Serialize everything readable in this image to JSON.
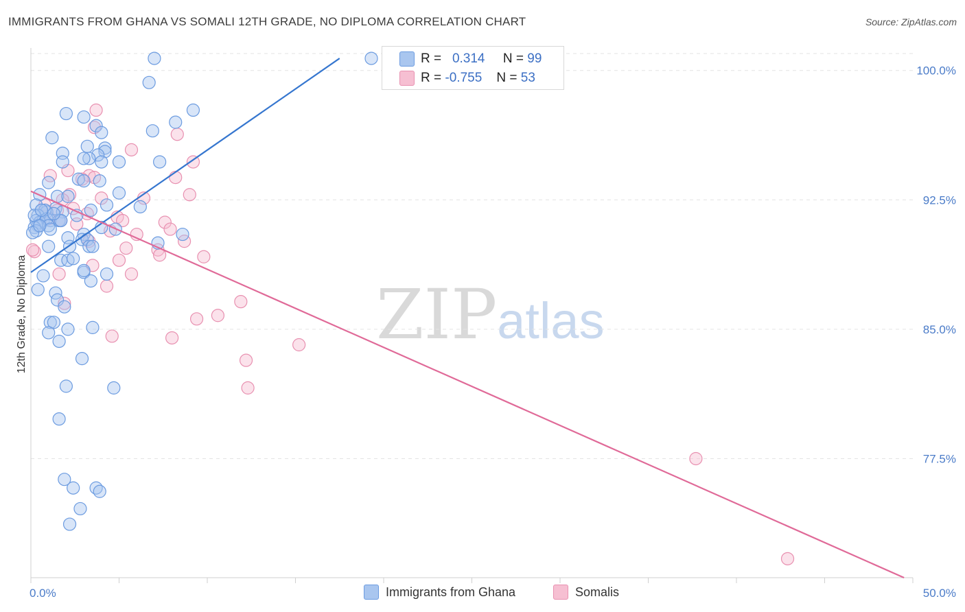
{
  "title": "IMMIGRANTS FROM GHANA VS SOMALI 12TH GRADE, NO DIPLOMA CORRELATION CHART",
  "source": "Source: ZipAtlas.com",
  "watermark": {
    "zip": "ZIP",
    "atlas": "atlas"
  },
  "legend_top": {
    "rows": [
      {
        "r_label": "R =",
        "r_value": "0.314",
        "n_label": "N =",
        "n_value": "99"
      },
      {
        "r_label": "R =",
        "r_value": "-0.755",
        "n_label": "N =",
        "n_value": "53"
      }
    ]
  },
  "legend_bottom": [
    "Immigrants from Ghana",
    "Somalis"
  ],
  "colors": {
    "ghana_fill": "#a9c6ef",
    "ghana_stroke": "#6b9be0",
    "ghana_line": "#3576cf",
    "somali_fill": "#f6bfd2",
    "somali_stroke": "#e890b0",
    "somali_line": "#e06a98",
    "grid": "#e3e3e3",
    "tick_text": "#4a7bc8"
  },
  "chart_data": {
    "type": "scatter",
    "title": "IMMIGRANTS FROM GHANA VS SOMALI 12TH GRADE, NO DIPLOMA CORRELATION CHART",
    "xlabel": "",
    "ylabel": "12th Grade, No Diploma",
    "xlim": [
      0,
      50
    ],
    "ylim": [
      70.6,
      101.3
    ],
    "x_tick_labels": [
      "0.0%",
      "50.0%"
    ],
    "y_ticks": [
      100.0,
      92.5,
      85.0,
      77.5
    ],
    "y_tick_labels": [
      "100.0%",
      "92.5%",
      "85.0%",
      "77.5%"
    ],
    "grid": true,
    "series": [
      {
        "name": "Immigrants from Ghana",
        "r": 0.314,
        "n": 99,
        "trend": {
          "x": [
            0,
            17.5
          ],
          "y": [
            88.3,
            100.7
          ]
        },
        "points": [
          [
            7.0,
            100.7
          ],
          [
            19.3,
            100.7
          ],
          [
            6.7,
            99.3
          ],
          [
            9.2,
            97.7
          ],
          [
            2.0,
            97.5
          ],
          [
            3.0,
            97.3
          ],
          [
            8.2,
            97.0
          ],
          [
            3.7,
            96.8
          ],
          [
            4.0,
            96.4
          ],
          [
            6.9,
            96.5
          ],
          [
            1.2,
            96.1
          ],
          [
            3.2,
            95.6
          ],
          [
            4.2,
            95.5
          ],
          [
            4.2,
            95.3
          ],
          [
            1.8,
            95.2
          ],
          [
            3.8,
            95.1
          ],
          [
            3.3,
            94.9
          ],
          [
            1.8,
            94.7
          ],
          [
            3.0,
            94.9
          ],
          [
            4.0,
            94.7
          ],
          [
            5.0,
            94.7
          ],
          [
            7.3,
            94.7
          ],
          [
            2.7,
            93.7
          ],
          [
            3.0,
            93.6
          ],
          [
            1.0,
            93.5
          ],
          [
            3.9,
            93.6
          ],
          [
            5.0,
            92.9
          ],
          [
            0.5,
            92.8
          ],
          [
            1.5,
            92.7
          ],
          [
            2.1,
            92.7
          ],
          [
            0.3,
            92.2
          ],
          [
            4.3,
            92.2
          ],
          [
            6.2,
            92.1
          ],
          [
            0.6,
            91.9
          ],
          [
            1.4,
            92.0
          ],
          [
            0.9,
            91.8
          ],
          [
            0.8,
            91.9
          ],
          [
            1.8,
            91.8
          ],
          [
            2.6,
            91.6
          ],
          [
            3.4,
            91.9
          ],
          [
            0.4,
            91.6
          ],
          [
            0.3,
            91.3
          ],
          [
            0.7,
            91.3
          ],
          [
            1.1,
            91.3
          ],
          [
            1.6,
            91.3
          ],
          [
            0.5,
            91.2
          ],
          [
            1.7,
            91.3
          ],
          [
            0.9,
            91.4
          ],
          [
            1.7,
            91.3
          ],
          [
            0.4,
            91.0
          ],
          [
            1.0,
            91.0
          ],
          [
            0.2,
            90.9
          ],
          [
            1.1,
            90.8
          ],
          [
            0.3,
            90.7
          ],
          [
            4.0,
            90.9
          ],
          [
            3.0,
            90.5
          ],
          [
            4.8,
            90.8
          ],
          [
            8.6,
            90.5
          ],
          [
            2.1,
            90.3
          ],
          [
            2.9,
            90.2
          ],
          [
            3.2,
            90.2
          ],
          [
            7.2,
            90.0
          ],
          [
            1.0,
            89.8
          ],
          [
            2.2,
            89.8
          ],
          [
            3.3,
            89.8
          ],
          [
            3.5,
            89.8
          ],
          [
            1.7,
            89.0
          ],
          [
            2.1,
            89.0
          ],
          [
            2.4,
            89.1
          ],
          [
            3.0,
            88.3
          ],
          [
            3.0,
            88.4
          ],
          [
            4.3,
            88.2
          ],
          [
            0.7,
            88.1
          ],
          [
            3.4,
            87.8
          ],
          [
            0.4,
            87.3
          ],
          [
            1.4,
            87.1
          ],
          [
            1.5,
            86.7
          ],
          [
            1.9,
            86.3
          ],
          [
            1.1,
            85.4
          ],
          [
            1.3,
            85.4
          ],
          [
            2.1,
            85.0
          ],
          [
            3.5,
            85.1
          ],
          [
            1.0,
            84.8
          ],
          [
            1.6,
            84.3
          ],
          [
            2.9,
            83.3
          ],
          [
            2.0,
            81.7
          ],
          [
            4.7,
            81.6
          ],
          [
            1.6,
            79.8
          ],
          [
            1.9,
            76.3
          ],
          [
            2.4,
            75.8
          ],
          [
            3.7,
            75.8
          ],
          [
            3.9,
            75.6
          ],
          [
            2.8,
            74.6
          ],
          [
            2.2,
            73.7
          ],
          [
            0.1,
            90.6
          ],
          [
            0.2,
            91.6
          ],
          [
            0.5,
            91.0
          ],
          [
            1.3,
            91.7
          ],
          [
            0.6,
            91.9
          ]
        ]
      },
      {
        "name": "Somalis",
        "r": -0.755,
        "n": 53,
        "trend": {
          "x": [
            0,
            49.5
          ],
          "y": [
            93.0,
            70.6
          ]
        },
        "points": [
          [
            3.7,
            97.7
          ],
          [
            3.6,
            96.7
          ],
          [
            8.3,
            96.3
          ],
          [
            5.7,
            95.4
          ],
          [
            9.2,
            94.7
          ],
          [
            2.1,
            94.2
          ],
          [
            1.1,
            93.9
          ],
          [
            3.3,
            93.9
          ],
          [
            2.9,
            93.7
          ],
          [
            8.2,
            93.8
          ],
          [
            3.6,
            93.8
          ],
          [
            2.2,
            92.8
          ],
          [
            4.0,
            92.6
          ],
          [
            1.8,
            92.5
          ],
          [
            6.4,
            92.6
          ],
          [
            9.0,
            92.8
          ],
          [
            0.8,
            92.2
          ],
          [
            2.4,
            92.0
          ],
          [
            1.5,
            91.9
          ],
          [
            3.2,
            91.7
          ],
          [
            4.9,
            91.5
          ],
          [
            1.0,
            91.4
          ],
          [
            1.7,
            91.3
          ],
          [
            5.2,
            91.3
          ],
          [
            7.6,
            91.2
          ],
          [
            2.6,
            91.1
          ],
          [
            7.9,
            90.8
          ],
          [
            6.0,
            90.5
          ],
          [
            4.5,
            90.7
          ],
          [
            8.7,
            90.1
          ],
          [
            3.3,
            90.1
          ],
          [
            7.2,
            89.6
          ],
          [
            7.3,
            89.3
          ],
          [
            5.4,
            89.7
          ],
          [
            9.8,
            89.2
          ],
          [
            5.0,
            89.0
          ],
          [
            3.5,
            88.7
          ],
          [
            0.2,
            89.5
          ],
          [
            5.7,
            88.2
          ],
          [
            1.6,
            88.2
          ],
          [
            4.3,
            87.5
          ],
          [
            1.9,
            86.5
          ],
          [
            11.9,
            86.6
          ],
          [
            10.6,
            85.8
          ],
          [
            9.4,
            85.6
          ],
          [
            4.6,
            84.6
          ],
          [
            8.0,
            84.5
          ],
          [
            15.2,
            84.1
          ],
          [
            12.2,
            83.2
          ],
          [
            12.3,
            81.6
          ],
          [
            37.7,
            77.5
          ],
          [
            42.9,
            71.7
          ],
          [
            0.1,
            89.6
          ]
        ]
      }
    ]
  }
}
